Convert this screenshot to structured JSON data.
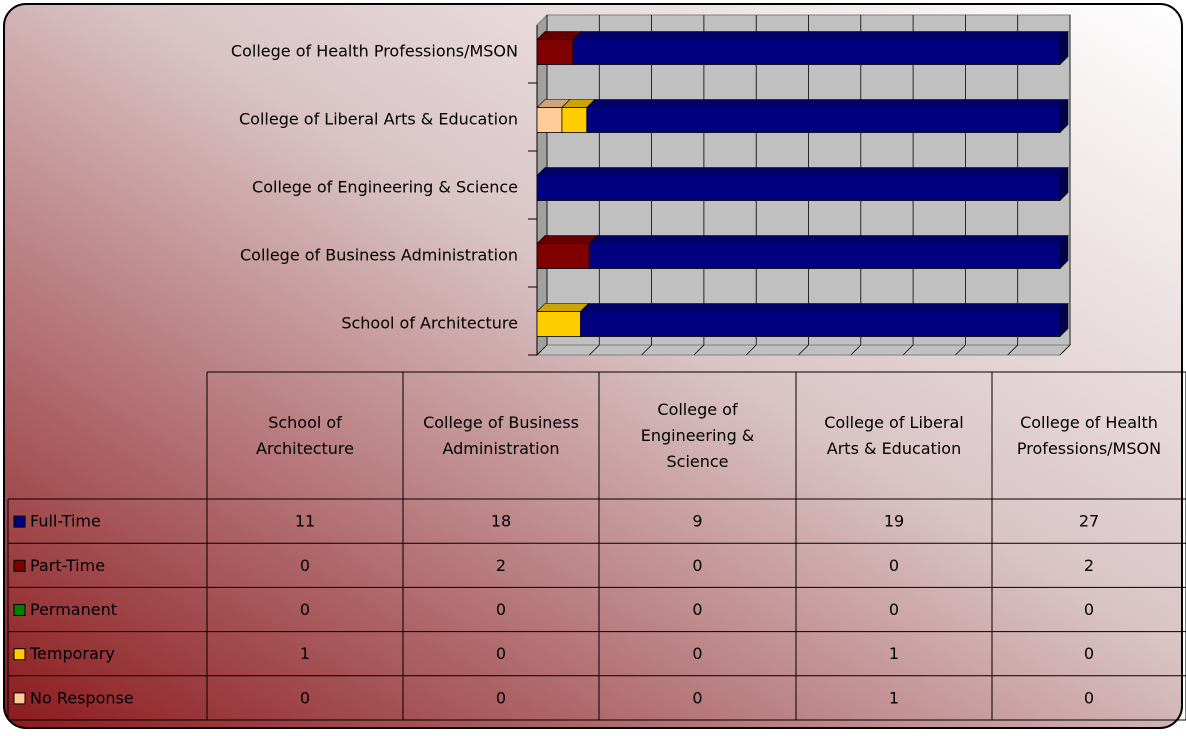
{
  "chart_data": {
    "type": "bar",
    "orientation": "horizontal",
    "stacked": "percent",
    "categories": [
      "School of Architecture",
      "College of Business Administration",
      "College of Engineering & Science",
      "College of Liberal Arts & Education",
      "College of Health Professions/MSON"
    ],
    "series": [
      {
        "name": "Full-Time",
        "color": "#000080",
        "values": [
          11,
          18,
          9,
          19,
          27
        ]
      },
      {
        "name": "Part-Time",
        "color": "#800000",
        "values": [
          0,
          2,
          0,
          0,
          2
        ]
      },
      {
        "name": "Permanent",
        "color": "#008000",
        "values": [
          0,
          0,
          0,
          0,
          0
        ]
      },
      {
        "name": "Temporary",
        "color": "#ffcc00",
        "values": [
          1,
          0,
          0,
          1,
          0
        ]
      },
      {
        "name": "No Response",
        "color": "#ffcc99",
        "values": [
          0,
          0,
          0,
          1,
          0
        ]
      }
    ],
    "xlim": [
      0,
      100
    ],
    "xticks": [
      0,
      10,
      20,
      30,
      40,
      50,
      60,
      70,
      80,
      90,
      100
    ],
    "tick_labels": false,
    "grid": true,
    "data_table": true
  }
}
